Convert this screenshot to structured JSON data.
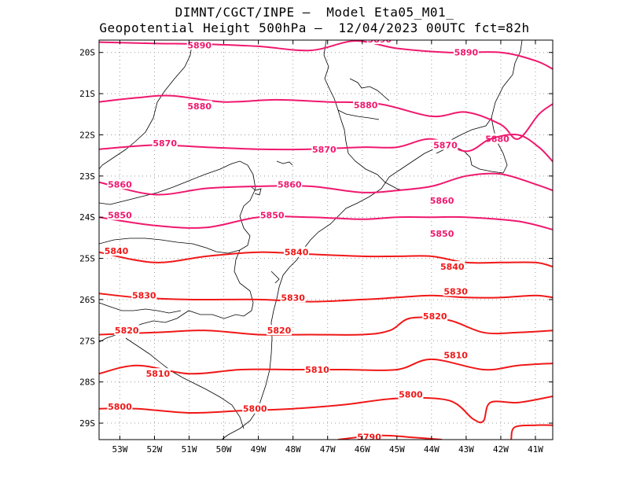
{
  "title": {
    "line1": "DIMNT/CGCT/INPE –  Model Eta05_M01_",
    "line2": "Geopotential Height 500hPa –  12/04/2023 00UTC fct=82h"
  },
  "map": {
    "lon_range": [
      -53.6,
      -40.5
    ],
    "lat_range": [
      -29.4,
      -19.7
    ],
    "lat_ticks": [
      "20S",
      "21S",
      "22S",
      "23S",
      "24S",
      "25S",
      "26S",
      "27S",
      "28S",
      "29S"
    ],
    "lon_ticks": [
      "53W",
      "52W",
      "51W",
      "50W",
      "49W",
      "48W",
      "47W",
      "46W",
      "45W",
      "44W",
      "43W",
      "42W",
      "41W"
    ],
    "grid": "dotted",
    "colors": {
      "contour_high": "#f0186e",
      "contour_low": "#f01818",
      "coastline": "#000000"
    }
  },
  "contours": [
    {
      "label": "5890",
      "color": "#f0186e",
      "points": [
        [
          -53.6,
          -19.75
        ],
        [
          -52,
          -19.78
        ],
        [
          -50.5,
          -19.8
        ],
        [
          -49,
          -19.85
        ],
        [
          -47.5,
          -19.95
        ],
        [
          -46.2,
          -19.72
        ],
        [
          -45,
          -19.9
        ],
        [
          -43.5,
          -20
        ],
        [
          -42,
          -20
        ],
        [
          -41,
          -20.2
        ],
        [
          -40.5,
          -20.4
        ]
      ],
      "labels": [
        [
          -50.7,
          -19.82
        ],
        [
          -45.5,
          -19.68
        ],
        [
          -43,
          -20.0
        ]
      ]
    },
    {
      "label": "5880",
      "color": "#f0186e",
      "points": [
        [
          -53.6,
          -21.2
        ],
        [
          -52.5,
          -21.1
        ],
        [
          -51.5,
          -21.05
        ],
        [
          -50,
          -21.2
        ],
        [
          -48.5,
          -21.15
        ],
        [
          -47,
          -21.2
        ],
        [
          -45.5,
          -21.25
        ],
        [
          -44,
          -21.55
        ],
        [
          -43,
          -21.45
        ],
        [
          -42,
          -21.75
        ],
        [
          -41.5,
          -22.1
        ],
        [
          -40.9,
          -21.5
        ],
        [
          -40.5,
          -21.25
        ]
      ],
      "labels": [
        [
          -50.7,
          -21.3
        ],
        [
          -45.9,
          -21.28
        ],
        [
          -42.1,
          -22.1
        ]
      ]
    },
    {
      "label": "5870",
      "color": "#f0186e",
      "points": [
        [
          -53.6,
          -22.35
        ],
        [
          -52,
          -22.25
        ],
        [
          -50.5,
          -22.3
        ],
        [
          -49,
          -22.35
        ],
        [
          -47.5,
          -22.35
        ],
        [
          -46,
          -22.3
        ],
        [
          -45,
          -22.3
        ],
        [
          -44,
          -22.1
        ],
        [
          -43,
          -22.4
        ],
        [
          -42.3,
          -22.1
        ],
        [
          -41.5,
          -22
        ],
        [
          -40.9,
          -22.3
        ],
        [
          -40.5,
          -22.65
        ]
      ],
      "labels": [
        [
          -51.7,
          -22.2
        ],
        [
          -47.1,
          -22.35
        ],
        [
          -43.6,
          -22.25
        ]
      ]
    },
    {
      "label": "5860",
      "color": "#f0186e",
      "points": [
        [
          -53.6,
          -23.15
        ],
        [
          -52,
          -23.45
        ],
        [
          -50.5,
          -23.3
        ],
        [
          -49,
          -23.25
        ],
        [
          -47.5,
          -23.25
        ],
        [
          -46,
          -23.4
        ],
        [
          -45,
          -23.35
        ],
        [
          -44,
          -23.25
        ],
        [
          -43,
          -23
        ],
        [
          -42,
          -22.95
        ],
        [
          -41,
          -23.2
        ],
        [
          -40.5,
          -23.35
        ]
      ],
      "labels": [
        [
          -53,
          -23.2
        ],
        [
          -48.1,
          -23.2
        ],
        [
          -43.7,
          -23.6
        ]
      ]
    },
    {
      "label": "5850",
      "color": "#f0186e",
      "points": [
        [
          -53.6,
          -24
        ],
        [
          -52,
          -24.2
        ],
        [
          -50.5,
          -24.25
        ],
        [
          -49,
          -24.0
        ],
        [
          -47.5,
          -24
        ],
        [
          -46,
          -24.05
        ],
        [
          -45,
          -24.0
        ],
        [
          -44,
          -24
        ],
        [
          -43,
          -24
        ],
        [
          -41.5,
          -24.1
        ],
        [
          -40.5,
          -24.3
        ]
      ],
      "labels": [
        [
          -53,
          -23.95
        ],
        [
          -48.6,
          -23.95
        ],
        [
          -43.7,
          -24.4
        ]
      ]
    },
    {
      "label": "5840",
      "color": "#f01818",
      "points": [
        [
          -53.6,
          -24.85
        ],
        [
          -52,
          -25.1
        ],
        [
          -50.5,
          -24.95
        ],
        [
          -49,
          -24.85
        ],
        [
          -47.5,
          -24.9
        ],
        [
          -46,
          -24.95
        ],
        [
          -45,
          -24.95
        ],
        [
          -44,
          -24.95
        ],
        [
          -43,
          -25.1
        ],
        [
          -42,
          -25.1
        ],
        [
          -41,
          -25.1
        ],
        [
          -40.5,
          -25.2
        ]
      ],
      "labels": [
        [
          -53.1,
          -24.82
        ],
        [
          -47.9,
          -24.85
        ],
        [
          -43.4,
          -25.2
        ]
      ]
    },
    {
      "label": "5830",
      "color": "#f01818",
      "points": [
        [
          -53.6,
          -25.85
        ],
        [
          -52.5,
          -25.95
        ],
        [
          -51,
          -26
        ],
        [
          -49,
          -26
        ],
        [
          -47.5,
          -26.05
        ],
        [
          -46,
          -26
        ],
        [
          -45,
          -25.95
        ],
        [
          -44,
          -25.9
        ],
        [
          -43,
          -25.95
        ],
        [
          -42,
          -25.95
        ],
        [
          -41,
          -25.9
        ],
        [
          -40.5,
          -25.95
        ]
      ],
      "labels": [
        [
          -52.3,
          -25.9
        ],
        [
          -48,
          -25.95
        ],
        [
          -43.3,
          -25.8
        ]
      ]
    },
    {
      "label": "5820",
      "color": "#f01818",
      "points": [
        [
          -53.6,
          -26.85
        ],
        [
          -52,
          -26.8
        ],
        [
          -50.5,
          -26.75
        ],
        [
          -49,
          -26.85
        ],
        [
          -47.5,
          -26.85
        ],
        [
          -46,
          -26.85
        ],
        [
          -45.2,
          -26.75
        ],
        [
          -44.6,
          -26.45
        ],
        [
          -43.5,
          -26.5
        ],
        [
          -42.5,
          -26.8
        ],
        [
          -41.5,
          -26.8
        ],
        [
          -40.5,
          -26.75
        ]
      ],
      "labels": [
        [
          -52.8,
          -26.75
        ],
        [
          -48.4,
          -26.75
        ],
        [
          -43.9,
          -26.4
        ]
      ]
    },
    {
      "label": "5810",
      "color": "#f01818",
      "points": [
        [
          -53.6,
          -27.8
        ],
        [
          -52.5,
          -27.6
        ],
        [
          -51,
          -27.8
        ],
        [
          -49.5,
          -27.7
        ],
        [
          -48,
          -27.7
        ],
        [
          -46.5,
          -27.7
        ],
        [
          -45,
          -27.7
        ],
        [
          -44,
          -27.45
        ],
        [
          -42.5,
          -27.7
        ],
        [
          -41.5,
          -27.6
        ],
        [
          -40.5,
          -27.55
        ]
      ],
      "labels": [
        [
          -51.9,
          -27.8
        ],
        [
          -47.3,
          -27.7
        ],
        [
          -43.3,
          -27.35
        ]
      ]
    },
    {
      "label": "5800",
      "color": "#f01818",
      "points": [
        [
          -53.6,
          -28.65
        ],
        [
          -52.5,
          -28.65
        ],
        [
          -51,
          -28.75
        ],
        [
          -49.5,
          -28.7
        ],
        [
          -48,
          -28.65
        ],
        [
          -46.5,
          -28.55
        ],
        [
          -45,
          -28.4
        ],
        [
          -43.5,
          -28.45
        ],
        [
          -42.8,
          -28.9
        ],
        [
          -42.5,
          -28.95
        ],
        [
          -42.3,
          -28.5
        ],
        [
          -41.5,
          -28.5
        ],
        [
          -40.5,
          -28.35
        ]
      ],
      "labels": [
        [
          -53,
          -28.6
        ],
        [
          -49.1,
          -28.65
        ],
        [
          -44.6,
          -28.3
        ]
      ]
    },
    {
      "label": "5790",
      "color": "#f01818",
      "points": [
        [
          -46.7,
          -29.4
        ],
        [
          -45.5,
          -29.3
        ],
        [
          -44.5,
          -29.35
        ],
        [
          -43.7,
          -29.4
        ]
      ],
      "labels": [
        [
          -45.8,
          -29.33
        ]
      ]
    },
    {
      "label": "",
      "color": "#f01818",
      "points": [
        [
          -41.7,
          -29.4
        ],
        [
          -41.6,
          -29.1
        ],
        [
          -41,
          -29.05
        ],
        [
          -40.5,
          -29.05
        ]
      ],
      "labels": []
    }
  ]
}
